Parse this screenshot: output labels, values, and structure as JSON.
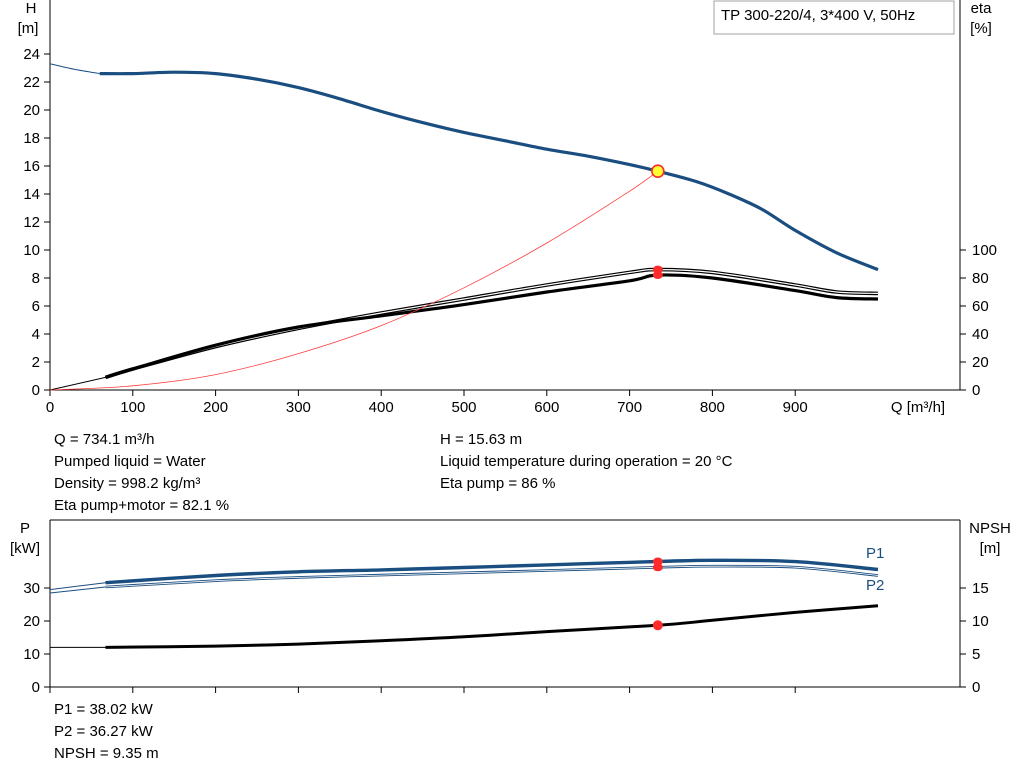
{
  "chart_data": [
    {
      "type": "line",
      "model_label": "TP 300-220/4, 3*400 V, 50Hz",
      "y_axis_left": {
        "label_line1": "H",
        "label_line2": "[m]",
        "ticks": [
          0,
          2,
          4,
          6,
          8,
          10,
          12,
          14,
          16,
          18,
          20,
          22,
          24
        ],
        "range": [
          0,
          25
        ]
      },
      "y_axis_right": {
        "label_line1": "eta",
        "label_line2": "[%]",
        "ticks": [
          0,
          20,
          40,
          60,
          80,
          100
        ]
      },
      "x_axis": {
        "label": "Q [m³/h]",
        "ticks": [
          0,
          100,
          200,
          300,
          400,
          500,
          600,
          700,
          800,
          900
        ],
        "range": [
          0,
          1000
        ]
      },
      "series": [
        {
          "name": "H",
          "color": "#1b4e80",
          "points": [
            [
              0,
              23.3
            ],
            [
              30,
              22.9
            ],
            [
              60,
              22.6
            ],
            [
              100,
              22.6
            ],
            [
              150,
              22.7
            ],
            [
              200,
              22.6
            ],
            [
              250,
              22.2
            ],
            [
              300,
              21.6
            ],
            [
              350,
              20.8
            ],
            [
              400,
              19.9
            ],
            [
              450,
              19.1
            ],
            [
              500,
              18.4
            ],
            [
              550,
              17.8
            ],
            [
              600,
              17.2
            ],
            [
              650,
              16.7
            ],
            [
              700,
              16.1
            ],
            [
              734,
              15.63
            ],
            [
              780,
              14.9
            ],
            [
              820,
              14.0
            ],
            [
              860,
              12.9
            ],
            [
              900,
              11.4
            ],
            [
              950,
              9.8
            ],
            [
              1000,
              8.6
            ]
          ]
        },
        {
          "name": "eta pump",
          "color": "#000000",
          "points": [
            [
              67,
              9
            ],
            [
              100,
              15
            ],
            [
              200,
              31
            ],
            [
              300,
              44
            ],
            [
              400,
              55
            ],
            [
              500,
              65
            ],
            [
              600,
              75
            ],
            [
              700,
              84
            ],
            [
              734,
              86
            ],
            [
              800,
              84
            ],
            [
              900,
              75
            ],
            [
              950,
              70
            ],
            [
              1000,
              69
            ]
          ]
        },
        {
          "name": "eta pump+motor",
          "color": "#000000",
          "points": [
            [
              67,
              9
            ],
            [
              100,
              15
            ],
            [
              200,
              32
            ],
            [
              300,
              45
            ],
            [
              400,
              53
            ],
            [
              500,
              61
            ],
            [
              600,
              70
            ],
            [
              700,
              78
            ],
            [
              734,
              82.1
            ],
            [
              800,
              80
            ],
            [
              900,
              71
            ],
            [
              950,
              66
            ],
            [
              1000,
              65
            ]
          ]
        },
        {
          "name": "system curve",
          "color": "#ff3b3b",
          "points": [
            [
              0,
              0
            ],
            [
              100,
              0.3
            ],
            [
              200,
              1.1
            ],
            [
              300,
              2.6
            ],
            [
              400,
              4.6
            ],
            [
              500,
              7.3
            ],
            [
              600,
              10.5
            ],
            [
              700,
              14.2
            ],
            [
              734,
              15.63
            ]
          ]
        }
      ],
      "operating_point": {
        "Q": 734.1,
        "H": 15.63,
        "eta_pump": 86,
        "eta_total": 82.1
      }
    },
    {
      "type": "line",
      "y_axis_left": {
        "label_line1": "P",
        "label_line2": "[kW]",
        "ticks": [
          0,
          10,
          20,
          30
        ],
        "range": [
          0,
          50
        ]
      },
      "y_axis_right": {
        "label_line1": "NPSH",
        "label_line2": "[m]",
        "ticks": [
          0,
          5,
          10,
          15
        ]
      },
      "x_axis": {
        "range": [
          0,
          1000
        ]
      },
      "series": [
        {
          "name": "P1",
          "label": "P1",
          "color": "#1b4e80",
          "points": [
            [
              0,
              29.5
            ],
            [
              67,
              31.6
            ],
            [
              200,
              33.8
            ],
            [
              300,
              34.9
            ],
            [
              400,
              35.5
            ],
            [
              500,
              36.2
            ],
            [
              600,
              37.0
            ],
            [
              734,
              38.02
            ],
            [
              800,
              38.4
            ],
            [
              900,
              38.0
            ],
            [
              1000,
              35.6
            ]
          ]
        },
        {
          "name": "P2",
          "label": "P2",
          "color": "#1b4e80",
          "points": [
            [
              0,
              28.5
            ],
            [
              67,
              30.3
            ],
            [
              200,
              32.2
            ],
            [
              300,
              33.2
            ],
            [
              400,
              33.9
            ],
            [
              500,
              34.6
            ],
            [
              600,
              35.3
            ],
            [
              734,
              36.27
            ],
            [
              800,
              36.6
            ],
            [
              900,
              36.3
            ],
            [
              1000,
              33.8
            ]
          ]
        },
        {
          "name": "NPSH",
          "color": "#000000",
          "points": [
            [
              0,
              6.0
            ],
            [
              67,
              6.0
            ],
            [
              200,
              6.2
            ],
            [
              300,
              6.5
            ],
            [
              400,
              7.0
            ],
            [
              500,
              7.6
            ],
            [
              600,
              8.4
            ],
            [
              734,
              9.35
            ],
            [
              800,
              10.1
            ],
            [
              900,
              11.3
            ],
            [
              1000,
              12.3
            ]
          ]
        }
      ],
      "operating_point": {
        "Q": 734.1,
        "P1": 38.02,
        "P2": 36.27,
        "NPSH": 9.35
      }
    }
  ],
  "info_top_left": [
    "Q = 734.1 m³/h",
    "Pumped liquid = Water",
    "Density = 998.2 kg/m³",
    "Eta pump+motor = 82.1 %"
  ],
  "info_top_right": [
    "H = 15.63 m",
    "Liquid temperature during operation = 20 °C",
    "Eta pump = 86 %"
  ],
  "info_bottom": [
    "P1 = 38.02 kW",
    "P2 = 36.27 kW",
    "NPSH = 9.35 m"
  ],
  "colors": {
    "curve_blue": "#1b4e80",
    "marker_red": "#ff2a2a",
    "marker_yellow": "#ffff33",
    "system_curve": "#ff3b3b",
    "grid": "#000000"
  }
}
